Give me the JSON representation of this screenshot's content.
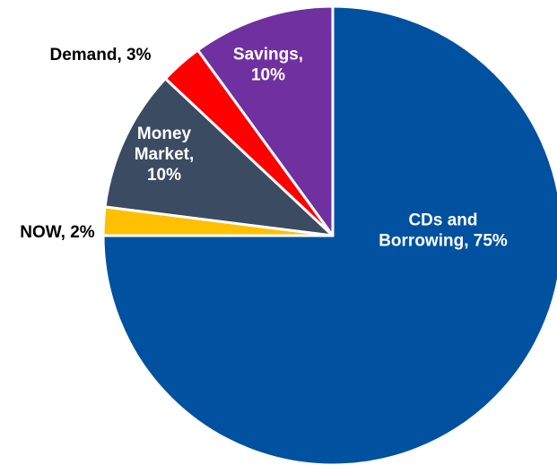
{
  "chart_data": {
    "type": "pie",
    "slices": [
      {
        "label": "CDs and Borrowing, 75%",
        "value": 75,
        "color": "#0051A0",
        "label_color": "#ffffff",
        "label_lines": [
          "CDs and",
          "Borrowing, 75%"
        ]
      },
      {
        "label": "NOW, 2%",
        "value": 2,
        "color": "#FFC000",
        "label_color": "#000000",
        "label_lines": [
          "NOW, 2%"
        ]
      },
      {
        "label": "Money Market, 10%",
        "value": 10,
        "color": "#3A4B62",
        "label_color": "#ffffff",
        "label_lines": [
          "Money",
          "Market,",
          "10%"
        ]
      },
      {
        "label": "Demand, 3%",
        "value": 3,
        "color": "#FF0000",
        "label_color": "#000000",
        "label_lines": [
          "Demand, 3%"
        ]
      },
      {
        "label": "Savings, 10%",
        "value": 10,
        "color": "#7030A0",
        "label_color": "#ffffff",
        "label_lines": [
          "Savings,",
          "10%"
        ]
      }
    ]
  }
}
